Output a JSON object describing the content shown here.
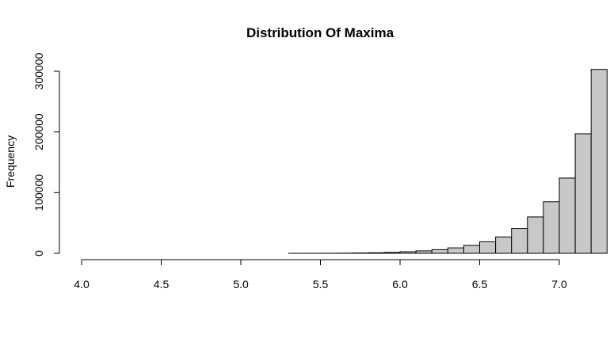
{
  "chart_data": {
    "type": "bar",
    "title": "Distribution Of Maxima",
    "xlabel": "",
    "ylabel": "Frequency",
    "bin_width": 0.1,
    "bin_edges_start": 4.0,
    "xlim": [
      4.0,
      7.0
    ],
    "ylim": [
      0,
      300000
    ],
    "x_ticks": [
      4.0,
      4.5,
      5.0,
      5.5,
      6.0,
      6.5,
      7.0
    ],
    "x_tick_labels": [
      "4.0",
      "4.5",
      "5.0",
      "5.5",
      "6.0",
      "6.5",
      "7.0"
    ],
    "y_ticks": [
      0,
      100000,
      200000,
      300000
    ],
    "y_tick_labels": [
      "0",
      "100000",
      "200000",
      "300000"
    ],
    "values": [
      0,
      0,
      0,
      0,
      0,
      0,
      0,
      0,
      0,
      0,
      0,
      0,
      0,
      10,
      30,
      100,
      250,
      500,
      900,
      1500,
      2600,
      4000,
      6000,
      9000,
      13000,
      19000,
      27000,
      41000,
      60000,
      85000,
      124000,
      197000,
      303000
    ],
    "bar_color": "#c8c8c8",
    "grid": false
  }
}
